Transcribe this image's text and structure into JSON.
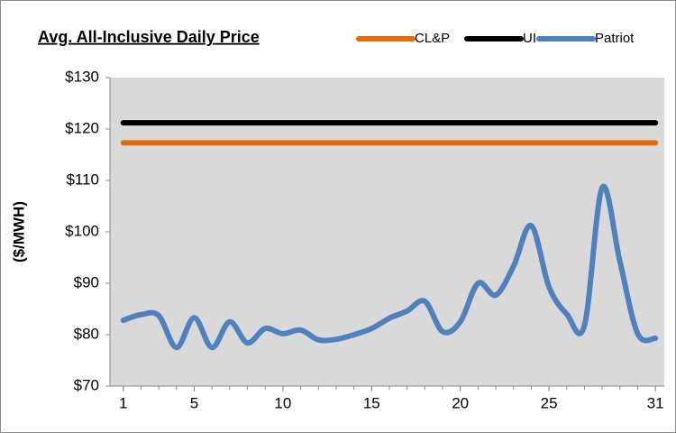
{
  "chart_data": {
    "type": "line",
    "title": "Avg. All-Inclusive Daily Price",
    "y_label": "($/MWH)",
    "x": [
      1,
      2,
      3,
      4,
      5,
      6,
      7,
      8,
      9,
      10,
      11,
      12,
      13,
      14,
      15,
      16,
      17,
      18,
      19,
      20,
      21,
      22,
      23,
      24,
      25,
      26,
      27,
      28,
      29,
      30,
      31
    ],
    "xlim": [
      0.25,
      31.5
    ],
    "xticks": [
      1,
      5,
      10,
      15,
      20,
      25,
      31
    ],
    "ylim": [
      70,
      130
    ],
    "yticks": [
      {
        "value": 70,
        "label": "$70"
      },
      {
        "value": 80,
        "label": "$80"
      },
      {
        "value": 90,
        "label": "$90"
      },
      {
        "value": 100,
        "label": "$100"
      },
      {
        "value": 110,
        "label": "$110"
      },
      {
        "value": 120,
        "label": "$120"
      },
      {
        "value": 130,
        "label": "$130"
      }
    ],
    "grid": false,
    "legend": "top",
    "series": [
      {
        "name": "CL&P",
        "color": "#e36c09",
        "values": [
          117.3,
          117.3,
          117.3,
          117.3,
          117.3,
          117.3,
          117.3,
          117.3,
          117.3,
          117.3,
          117.3,
          117.3,
          117.3,
          117.3,
          117.3,
          117.3,
          117.3,
          117.3,
          117.3,
          117.3,
          117.3,
          117.3,
          117.3,
          117.3,
          117.3,
          117.3,
          117.3,
          117.3,
          117.3,
          117.3,
          117.3
        ]
      },
      {
        "name": "UI",
        "color": "#000000",
        "values": [
          121.2,
          121.2,
          121.2,
          121.2,
          121.2,
          121.2,
          121.2,
          121.2,
          121.2,
          121.2,
          121.2,
          121.2,
          121.2,
          121.2,
          121.2,
          121.2,
          121.2,
          121.2,
          121.2,
          121.2,
          121.2,
          121.2,
          121.2,
          121.2,
          121.2,
          121.2,
          121.2,
          121.2,
          121.2,
          121.2,
          121.2
        ]
      },
      {
        "name": "Patriot",
        "color": "#4f81bd",
        "values": [
          82.8,
          83.9,
          83.7,
          77.5,
          83.3,
          77.5,
          82.5,
          78.4,
          81.2,
          80.2,
          80.9,
          79,
          79.1,
          80,
          81.2,
          83.2,
          84.6,
          86.5,
          80.6,
          82.5,
          90,
          87.7,
          93.3,
          101.2,
          89.3,
          84,
          81.8,
          108.6,
          94.2,
          80.2,
          79.3
        ]
      }
    ]
  }
}
